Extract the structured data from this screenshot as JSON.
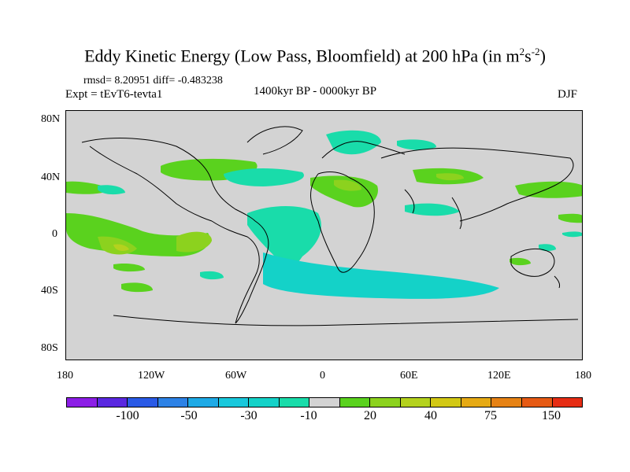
{
  "title": {
    "main": "Eddy Kinetic Energy (Low Pass, Bloomfield) at 200 hPa (in m",
    "sup1": "2",
    "mid": "s",
    "sup2": "-2",
    "end": ")"
  },
  "stats": "rmsd= 8.20951 diff= -0.483238",
  "expt": "Expt = tEvT6-tevta1",
  "period": "1400kyr BP - 0000kyr BP",
  "season": "DJF",
  "lat_labels": [
    "80N",
    "40N",
    "0",
    "40S",
    "80S"
  ],
  "lon_labels": [
    "180",
    "120W",
    "60W",
    "0",
    "60E",
    "120E",
    "180"
  ],
  "colorbar": {
    "colors": [
      "#8c1ee6",
      "#5a28e0",
      "#2a5ae6",
      "#2d82e6",
      "#1eaae6",
      "#19c8dc",
      "#14d2c8",
      "#19dcaa",
      "#d3d3d3",
      "#5ad21e",
      "#8cd21e",
      "#b4d21e",
      "#d2c814",
      "#e6aa14",
      "#e68214",
      "#e65a14",
      "#e62d14"
    ],
    "labels": [
      "-100",
      "-50",
      "-30",
      "-10",
      "20",
      "40",
      "75",
      "150"
    ]
  }
}
